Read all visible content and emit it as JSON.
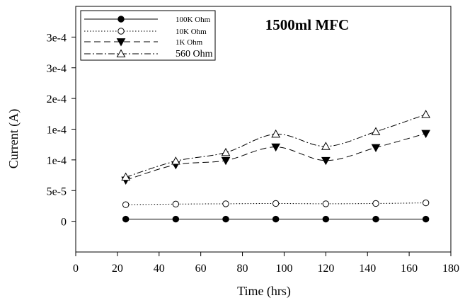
{
  "chart_data": {
    "type": "line",
    "title": "1500ml MFC",
    "xlabel": "Time (hrs)",
    "ylabel": "Current (A)",
    "xlim": [
      0,
      180
    ],
    "ylim": [
      -5e-05,
      0.00035
    ],
    "x_ticks": [
      0,
      20,
      40,
      60,
      80,
      100,
      120,
      140,
      160,
      180
    ],
    "y_ticks": [
      {
        "value": 0,
        "label": "0"
      },
      {
        "value": 5e-05,
        "label": "5e-5"
      },
      {
        "value": 0.0001,
        "label": "1e-4"
      },
      {
        "value": 0.00015,
        "label": "1e-4"
      },
      {
        "value": 0.0002,
        "label": "2e-4"
      },
      {
        "value": 0.00025,
        "label": "3e-4"
      },
      {
        "value": 0.0003,
        "label": "3e-4"
      }
    ],
    "grid": false,
    "legend_position": "top-left",
    "x": [
      24,
      48,
      72,
      96,
      120,
      144,
      168
    ],
    "series": [
      {
        "name": "100K Ohm",
        "marker": "filled-circle",
        "line": "solid",
        "values": [
          3.5e-06,
          3.5e-06,
          3.5e-06,
          3.5e-06,
          3.5e-06,
          3.5e-06,
          3.5e-06
        ]
      },
      {
        "name": "10K Ohm",
        "marker": "open-circle",
        "line": "dotted",
        "values": [
          2.7e-05,
          2.8e-05,
          2.85e-05,
          2.9e-05,
          2.85e-05,
          2.9e-05,
          3e-05
        ]
      },
      {
        "name": "1K Ohm",
        "marker": "filled-triangle-down",
        "line": "dashed",
        "values": [
          6.7e-05,
          9.2e-05,
          9.9e-05,
          0.000121,
          9.9e-05,
          0.00012,
          0.000143
        ]
      },
      {
        "name": "560 Ohm",
        "marker": "open-triangle-up",
        "line": "dash-dot",
        "values": [
          7.2e-05,
          9.8e-05,
          0.000112,
          0.000142,
          0.000122,
          0.000146,
          0.000174
        ]
      }
    ]
  }
}
